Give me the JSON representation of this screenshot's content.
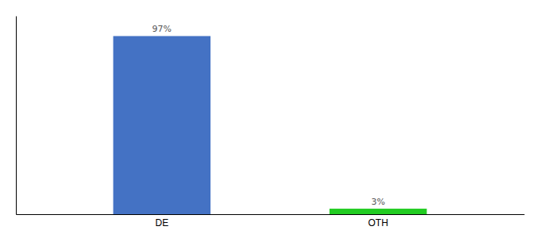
{
  "chart_data": {
    "type": "bar",
    "categories": [
      "DE",
      "OTH"
    ],
    "values": [
      97,
      3
    ],
    "value_labels": [
      "97%",
      "3%"
    ],
    "colors": [
      "#4472c4",
      "#22cc22"
    ],
    "ylim": [
      0,
      108
    ],
    "data_labels": true,
    "tick_labels": "x",
    "grid": false
  }
}
